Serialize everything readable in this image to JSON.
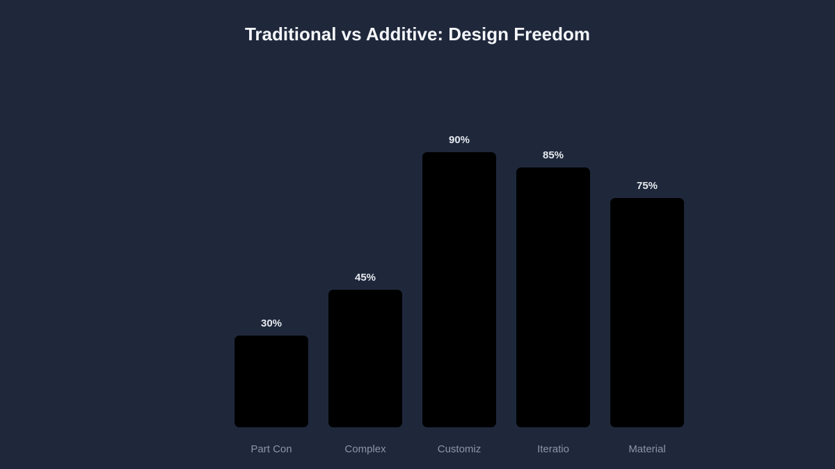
{
  "chart_data": {
    "type": "bar",
    "title": "Traditional vs Additive: Design Freedom",
    "categories": [
      "Part Con",
      "Complex",
      "Customiz",
      "Iteratio",
      "Material"
    ],
    "values": [
      30,
      45,
      90,
      85,
      75
    ],
    "value_labels": [
      "30%",
      "45%",
      "90%",
      "85%",
      "75%"
    ],
    "xlabel": "",
    "ylabel": "",
    "ylim": [
      0,
      100
    ],
    "grid": false,
    "legend": null,
    "colors": {
      "background": "#1f283b",
      "bar": "#000000",
      "title": "#f4f6fa",
      "value_label": "#e6e9ef",
      "tick_label": "#8d96a8"
    }
  }
}
